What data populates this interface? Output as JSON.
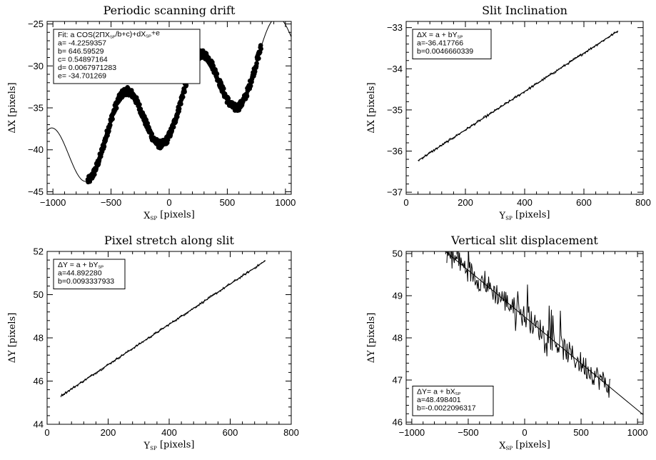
{
  "chart_data": [
    {
      "type": "scatter",
      "title": "Periodic scanning drift",
      "xlabel": "X_SP [pixels]",
      "ylabel": "ΔX [pixels]",
      "xlim": [
        -1050,
        1050
      ],
      "ylim": [
        -45.3,
        -24.7
      ],
      "xticks": [
        -1000,
        -500,
        0,
        500,
        1000
      ],
      "yticks": [
        -45,
        -40,
        -35,
        -30,
        -25
      ],
      "grid": false,
      "legend": {
        "position": "top-left",
        "lines": [
          "Fit: a COS(2ΠX_SP/b+c)+dX_SP+e",
          "a= -4.2259357",
          "b= 646.59529",
          "c= 0.54897164",
          "d= 0.0067971283",
          "e= -34.701269"
        ]
      },
      "fit": {
        "model": "cosine",
        "a": -4.2259357,
        "b": 646.59529,
        "c": 0.54897164,
        "d": 0.0067971283,
        "e": -34.701269,
        "x_range": [
          -1050,
          1050
        ]
      },
      "series": [
        {
          "style": "markers",
          "x_range": [
            -700,
            790
          ],
          "noise": 0.45
        }
      ]
    },
    {
      "type": "line",
      "title": "Slit Inclination",
      "xlabel": "Y_SP [pixels]",
      "ylabel": "ΔX [pixels]",
      "xlim": [
        0,
        800
      ],
      "ylim": [
        -37.05,
        -32.85
      ],
      "xticks": [
        0,
        200,
        400,
        600,
        800
      ],
      "yticks": [
        -37,
        -36,
        -35,
        -34,
        -33
      ],
      "grid": false,
      "legend": {
        "position": "top-left",
        "lines": [
          "ΔX = a + bY_SP",
          "a=-36.417766",
          "b=0.0046660339"
        ]
      },
      "fit": {
        "model": "linear",
        "a": -36.417766,
        "b": 0.0046660339,
        "x_range": [
          40,
          715
        ]
      },
      "series": [
        {
          "style": "line",
          "x_range": [
            40,
            715
          ],
          "noise": 0.035
        }
      ]
    },
    {
      "type": "line",
      "title": "Pixel stretch along slit",
      "xlabel": "Y_SP [pixels]",
      "ylabel": "ΔY [pixels]",
      "xlim": [
        0,
        800
      ],
      "ylim": [
        44,
        52
      ],
      "xticks": [
        0,
        200,
        400,
        600,
        800
      ],
      "yticks": [
        44,
        46,
        48,
        50,
        52
      ],
      "grid": false,
      "legend": {
        "position": "top-left",
        "lines": [
          "ΔY = a + bY_SP",
          "a=44.892280",
          "b=0.0093337933"
        ]
      },
      "fit": {
        "model": "linear",
        "a": 44.89228,
        "b": 0.0093337933,
        "x_range": [
          45,
          715
        ]
      },
      "series": [
        {
          "style": "line",
          "x_range": [
            45,
            715
          ],
          "noise": 0.06
        }
      ]
    },
    {
      "type": "line",
      "title": "Vertical slit displacement",
      "xlabel": "X_SP [pixels]",
      "ylabel": "ΔY [pixels]",
      "xlim": [
        -1050,
        1050
      ],
      "ylim": [
        45.95,
        50.05
      ],
      "xticks": [
        -1000,
        -500,
        0,
        500,
        1000
      ],
      "yticks": [
        46,
        47,
        48,
        49,
        50
      ],
      "grid": false,
      "legend": {
        "position": "bottom-left",
        "lines": [
          "ΔY= a + bX_SP",
          "a=48.498401",
          "b=-0.0022096317"
        ]
      },
      "fit": {
        "model": "linear",
        "a": 48.498401,
        "b": -0.0022096317,
        "x_range": [
          -1050,
          1050
        ]
      },
      "series": [
        {
          "style": "line",
          "x_range": [
            -690,
            760
          ],
          "noise": 0.28
        }
      ]
    }
  ]
}
